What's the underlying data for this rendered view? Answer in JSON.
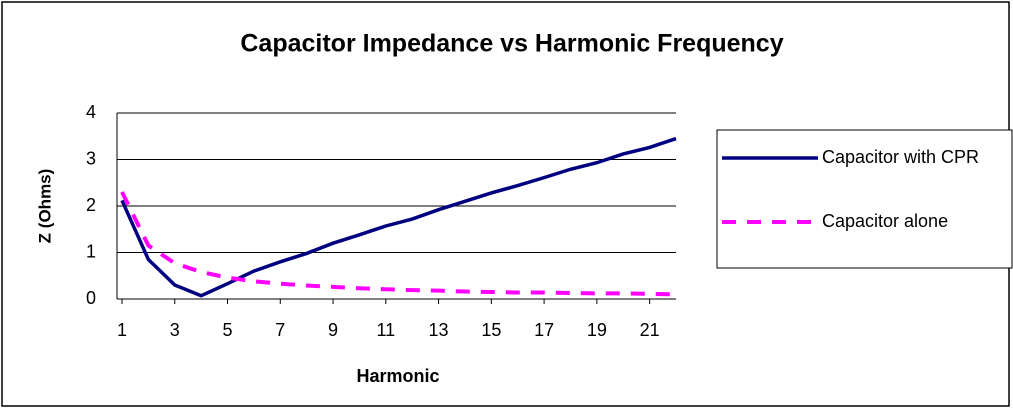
{
  "chart_data": {
    "type": "line",
    "title": "Capacitor Impedance vs Harmonic Frequency",
    "x_label": "Harmonic",
    "y_label": "Z (Ohms)",
    "x": [
      1,
      2,
      3,
      4,
      5,
      6,
      7,
      8,
      9,
      10,
      11,
      12,
      13,
      14,
      15,
      16,
      17,
      18,
      19,
      20,
      21,
      22
    ],
    "series": [
      {
        "name": "Capacitor with CPR",
        "color": "#000080",
        "dash": "solid",
        "values": [
          2.12,
          0.85,
          0.3,
          0.07,
          0.33,
          0.6,
          0.8,
          0.98,
          1.2,
          1.38,
          1.57,
          1.72,
          1.92,
          2.1,
          2.28,
          2.44,
          2.61,
          2.79,
          2.93,
          3.12,
          3.26,
          3.45
        ]
      },
      {
        "name": "Capacitor alone",
        "color": "#ff00ff",
        "dash": "dashed",
        "values": [
          2.3,
          1.15,
          0.77,
          0.58,
          0.46,
          0.38,
          0.33,
          0.29,
          0.26,
          0.23,
          0.21,
          0.19,
          0.18,
          0.16,
          0.15,
          0.14,
          0.14,
          0.13,
          0.12,
          0.12,
          0.11,
          0.1
        ]
      }
    ],
    "xlim": [
      1,
      22
    ],
    "xticks": [
      1,
      3,
      5,
      7,
      9,
      11,
      13,
      15,
      17,
      19,
      21
    ],
    "ylim": [
      0,
      4
    ],
    "yticks": [
      0,
      1,
      2,
      3,
      4
    ],
    "grid": true,
    "legend": "right"
  }
}
